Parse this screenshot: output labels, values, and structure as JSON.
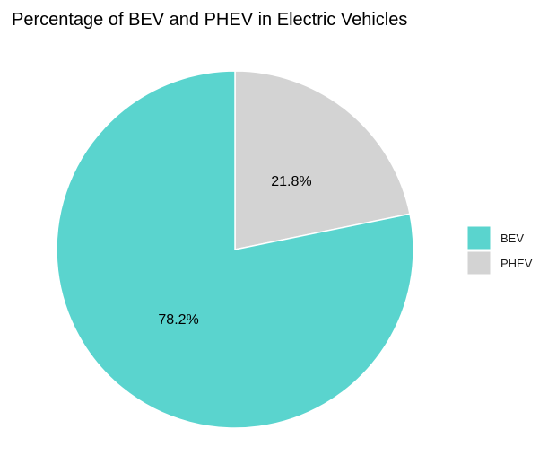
{
  "chart_data": {
    "type": "pie",
    "title": "Percentage of BEV and PHEV in Electric Vehicles",
    "slices": [
      {
        "name": "BEV",
        "value": 78.2,
        "label": "78.2%",
        "color": "#5AD4CE"
      },
      {
        "name": "PHEV",
        "value": 21.8,
        "label": "21.8%",
        "color": "#D3D3D3"
      }
    ],
    "legend": {
      "position": "right",
      "entries": [
        "BEV",
        "PHEV"
      ]
    },
    "start_angle": "12 o'clock",
    "direction": "clockwise",
    "slice_border_color": "#FFFFFF"
  }
}
